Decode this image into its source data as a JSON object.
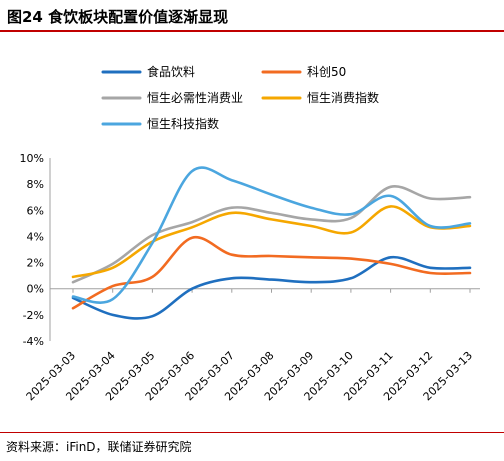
{
  "figure": {
    "title": "图24 食饮板块配置价值逐渐显现",
    "source": "资料来源：iFinD，联储证券研究院"
  },
  "chart_data": {
    "type": "line",
    "x": [
      "2025-03-03",
      "2025-03-04",
      "2025-03-05",
      "2025-03-06",
      "2025-03-07",
      "2025-03-08",
      "2025-03-09",
      "2025-03-10",
      "2025-03-11",
      "2025-03-12",
      "2025-03-13"
    ],
    "y_tick_labels": [
      "10%",
      "8%",
      "6%",
      "4%",
      "2%",
      "0%",
      "-2%",
      "-4%"
    ],
    "ylim": [
      -4,
      10
    ],
    "y_unit": "%",
    "grid": false,
    "legend_position": "top",
    "series": [
      {
        "name": "食品饮料",
        "color": "#1f6fbf",
        "values": [
          -0.7,
          -2.0,
          -2.1,
          0.0,
          0.8,
          0.7,
          0.5,
          0.8,
          2.4,
          1.6,
          1.6
        ]
      },
      {
        "name": "科创50",
        "color": "#f26b21",
        "values": [
          -1.5,
          0.2,
          0.9,
          3.9,
          2.6,
          2.5,
          2.4,
          2.3,
          1.9,
          1.2,
          1.2
        ]
      },
      {
        "name": "恒生必需性消费业",
        "color": "#a6a6a6",
        "values": [
          0.5,
          1.9,
          4.1,
          5.1,
          6.2,
          5.8,
          5.3,
          5.4,
          7.8,
          6.9,
          7.0
        ]
      },
      {
        "name": "恒生消费指数",
        "color": "#f5a700",
        "values": [
          0.9,
          1.6,
          3.6,
          4.7,
          5.8,
          5.3,
          4.8,
          4.3,
          6.3,
          4.7,
          4.8
        ]
      },
      {
        "name": "恒生科技指数",
        "color": "#4ba6df",
        "values": [
          -0.6,
          -0.8,
          3.5,
          9.0,
          8.3,
          7.2,
          6.2,
          5.7,
          7.1,
          4.8,
          5.0
        ]
      }
    ]
  }
}
